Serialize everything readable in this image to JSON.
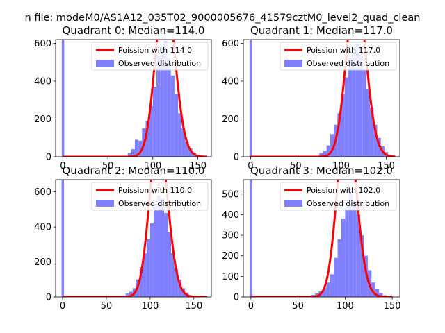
{
  "figure": {
    "suptitle": "n file: modeM0/AS1A12_035T02_9000005676_41579cztM0_level2_quad_clean"
  },
  "colors": {
    "poisson": "#ff0000",
    "observed": "#8080ff",
    "axis": "#000000"
  },
  "chart_data": [
    {
      "type": "histogram",
      "title": "Quadrant 0: Median=114.0",
      "median": 114.0,
      "xlim": [
        -8,
        165
      ],
      "ylim": [
        0,
        620
      ],
      "xticks": [
        0,
        50,
        100,
        150
      ],
      "yticks": [
        0,
        200,
        400,
        600
      ],
      "legend": {
        "location": "upper right",
        "entries": [
          {
            "label": "Poission with 114.0",
            "kind": "line"
          },
          {
            "label": "Observed distribution",
            "kind": "patch"
          }
        ]
      },
      "bin_width": 4,
      "spike": {
        "x": 0,
        "value": 620
      },
      "bins": [
        [
          68,
          3
        ],
        [
          72,
          18
        ],
        [
          76,
          40
        ],
        [
          80,
          90
        ],
        [
          84,
          85
        ],
        [
          88,
          150
        ],
        [
          92,
          190
        ],
        [
          96,
          270
        ],
        [
          100,
          370
        ],
        [
          104,
          540
        ],
        [
          108,
          580
        ],
        [
          112,
          610
        ],
        [
          116,
          520
        ],
        [
          120,
          430
        ],
        [
          124,
          330
        ],
        [
          128,
          230
        ],
        [
          132,
          150
        ],
        [
          136,
          80
        ],
        [
          140,
          45
        ],
        [
          144,
          22
        ],
        [
          148,
          10
        ],
        [
          152,
          5
        ],
        [
          156,
          2
        ]
      ],
      "poisson": {
        "lambda": 114.0,
        "total": 6000,
        "bin_width": 4,
        "x_range": [
          0,
          160
        ]
      }
    },
    {
      "type": "histogram",
      "title": "Quadrant 1: Median=117.0",
      "median": 117.0,
      "xlim": [
        -8,
        165
      ],
      "ylim": [
        0,
        620
      ],
      "xticks": [
        0,
        50,
        100,
        150
      ],
      "yticks": [
        0,
        200,
        400,
        600
      ],
      "legend": {
        "location": "upper right",
        "entries": [
          {
            "label": "Poission with 117.0",
            "kind": "line"
          },
          {
            "label": "Observed distribution",
            "kind": "patch"
          }
        ]
      },
      "bin_width": 4,
      "spike": {
        "x": 0,
        "value": 620
      },
      "bins": [
        [
          72,
          5
        ],
        [
          76,
          20
        ],
        [
          80,
          30
        ],
        [
          84,
          60
        ],
        [
          88,
          120
        ],
        [
          92,
          170
        ],
        [
          96,
          230
        ],
        [
          100,
          330
        ],
        [
          104,
          420
        ],
        [
          108,
          520
        ],
        [
          112,
          580
        ],
        [
          116,
          600
        ],
        [
          120,
          540
        ],
        [
          124,
          460
        ],
        [
          128,
          360
        ],
        [
          132,
          260
        ],
        [
          136,
          170
        ],
        [
          140,
          100
        ],
        [
          144,
          55
        ],
        [
          148,
          25
        ],
        [
          152,
          10
        ],
        [
          156,
          4
        ]
      ],
      "poisson": {
        "lambda": 117.0,
        "total": 6000,
        "bin_width": 4,
        "x_range": [
          0,
          160
        ]
      }
    },
    {
      "type": "histogram",
      "title": "Quadrant 2: Median=110.0",
      "median": 110.0,
      "xlim": [
        -8,
        170
      ],
      "ylim": [
        0,
        670
      ],
      "xticks": [
        0,
        50,
        100,
        150
      ],
      "yticks": [
        0,
        200,
        400,
        600
      ],
      "legend": {
        "location": "upper right",
        "entries": [
          {
            "label": "Poission with 110.0",
            "kind": "line"
          },
          {
            "label": "Observed distribution",
            "kind": "patch"
          }
        ]
      },
      "bin_width": 4,
      "spike": {
        "x": 0,
        "value": 670
      },
      "bins": [
        [
          64,
          3
        ],
        [
          68,
          8
        ],
        [
          72,
          20
        ],
        [
          76,
          30
        ],
        [
          80,
          50
        ],
        [
          84,
          100
        ],
        [
          88,
          170
        ],
        [
          92,
          250
        ],
        [
          96,
          330
        ],
        [
          100,
          420
        ],
        [
          104,
          540
        ],
        [
          108,
          580
        ],
        [
          112,
          560
        ],
        [
          116,
          480
        ],
        [
          120,
          370
        ],
        [
          124,
          250
        ],
        [
          128,
          160
        ],
        [
          132,
          100
        ],
        [
          136,
          50
        ],
        [
          140,
          25
        ],
        [
          144,
          10
        ],
        [
          148,
          4
        ]
      ],
      "poisson": {
        "lambda": 110.0,
        "total": 6000,
        "bin_width": 4,
        "x_range": [
          0,
          165
        ]
      }
    },
    {
      "type": "histogram",
      "title": "Quadrant 3: Median=102.0",
      "median": 102.0,
      "xlim": [
        -8,
        158
      ],
      "ylim": [
        0,
        570
      ],
      "xticks": [
        0,
        50,
        100,
        150
      ],
      "yticks": [
        0,
        100,
        200,
        300,
        400,
        500
      ],
      "legend": {
        "location": "upper right",
        "entries": [
          {
            "label": "Poission with 102.0",
            "kind": "line"
          },
          {
            "label": "Observed distribution",
            "kind": "patch"
          }
        ]
      },
      "bin_width": 4,
      "spike": {
        "x": 0,
        "value": 570
      },
      "bins": [
        [
          28,
          2
        ],
        [
          40,
          2
        ],
        [
          52,
          3
        ],
        [
          60,
          5
        ],
        [
          64,
          10
        ],
        [
          68,
          18
        ],
        [
          72,
          28
        ],
        [
          76,
          45
        ],
        [
          80,
          70
        ],
        [
          84,
          110
        ],
        [
          88,
          190
        ],
        [
          92,
          280
        ],
        [
          96,
          380
        ],
        [
          100,
          470
        ],
        [
          104,
          520
        ],
        [
          108,
          460
        ],
        [
          112,
          400
        ],
        [
          116,
          300
        ],
        [
          120,
          200
        ],
        [
          124,
          130
        ],
        [
          128,
          70
        ],
        [
          132,
          40
        ],
        [
          136,
          20
        ],
        [
          140,
          8
        ],
        [
          144,
          3
        ]
      ],
      "poisson": {
        "lambda": 102.0,
        "total": 5500,
        "bin_width": 4,
        "x_range": [
          0,
          150
        ]
      }
    }
  ]
}
